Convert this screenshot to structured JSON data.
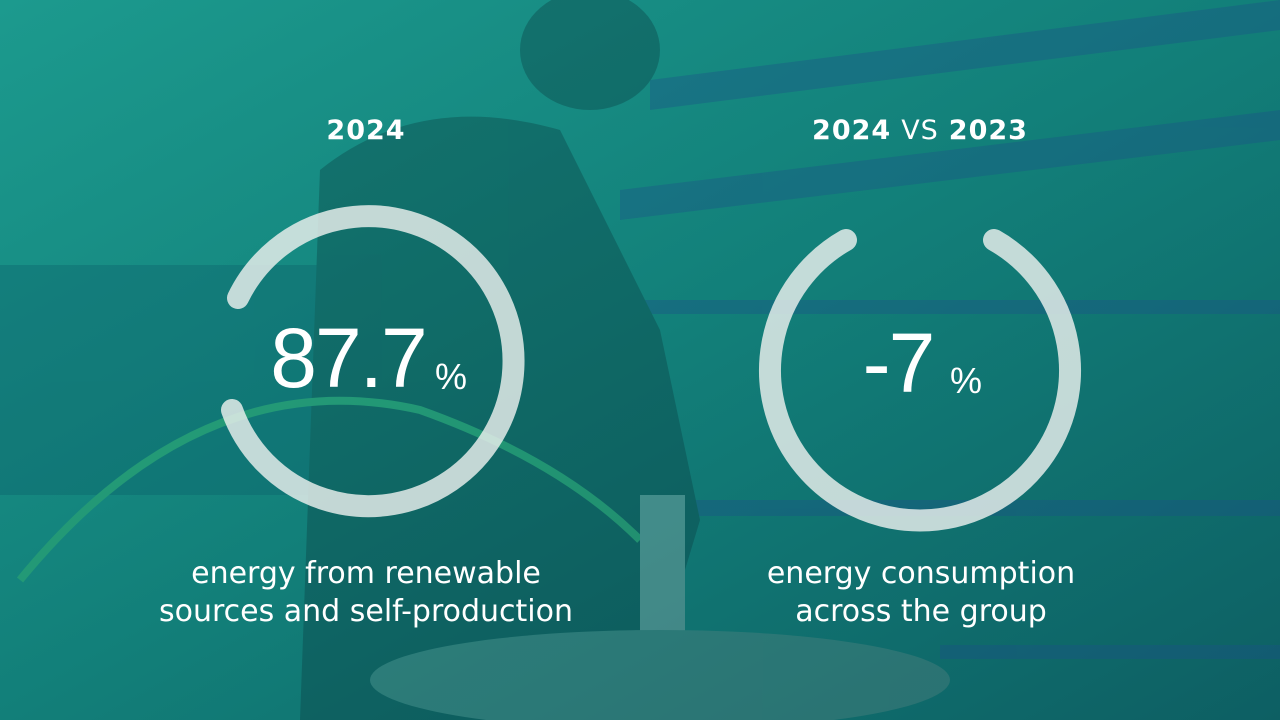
{
  "stats": [
    {
      "heading": [
        "2024"
      ],
      "value": "87.7",
      "unit": "%",
      "caption": [
        "energy from renewable",
        "sources and self-production"
      ]
    },
    {
      "heading": [
        "2024",
        "VS",
        "2023"
      ],
      "value": "-7",
      "unit": "%",
      "caption": [
        "energy consumption",
        "across the group"
      ]
    }
  ]
}
